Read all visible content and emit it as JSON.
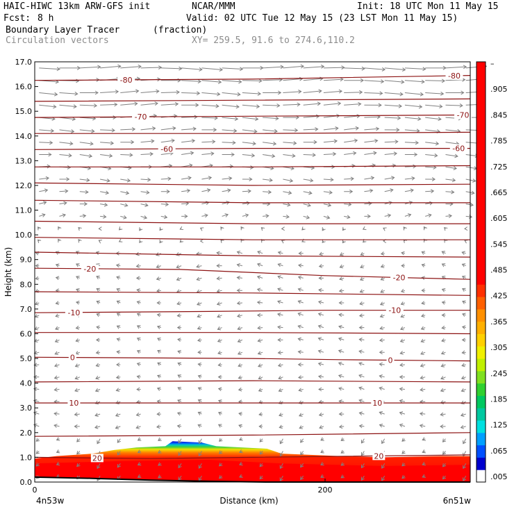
{
  "header": {
    "model_title": "HAIC-HIWC 13km ARW-GFS init",
    "organization": "NCAR/MMM",
    "init_time": "Init: 18 UTC Mon 11 May 15",
    "forecast_label": "Fcst:",
    "forecast_value": "8 h",
    "valid_time": "Valid: 02 UTC Tue 12 May 15 (23 LST Mon 11 May 15)",
    "field_name": "Boundary Layer Tracer",
    "field_units": "(fraction)",
    "vector_label": "Circulation vectors",
    "cross_section": "XY= 259.5, 91.6 to 274.6,110.2"
  },
  "axes": {
    "ylabel": "Height (km)",
    "xlabel": "Distance (km)",
    "left_endpoint": "4n53w",
    "right_endpoint": "6n51w"
  },
  "colors": {
    "contour": "#8b1010",
    "vector": "#808080",
    "terrain": "#000000",
    "frame": "#000000"
  },
  "chart_data": {
    "type": "heatmap",
    "description_of_layers": "filled tracer fraction, temperature contours, circulation vectors",
    "ylim": [
      0,
      17
    ],
    "xlim": [
      0,
      300
    ],
    "yticks": [
      "0.0",
      "1.0",
      "2.0",
      "3.0",
      "4.0",
      "5.0",
      "6.0",
      "7.0",
      "8.0",
      "9.0",
      "10.0",
      "11.0",
      "12.0",
      "13.0",
      "14.0",
      "15.0",
      "16.0",
      "17.0"
    ],
    "xticks": [
      {
        "value": 0,
        "label": "0"
      },
      {
        "value": 200,
        "label": "200"
      }
    ],
    "colorbar": {
      "labels": [
        ".005",
        ".065",
        ".125",
        ".185",
        ".245",
        ".305",
        ".365",
        ".425",
        ".485",
        ".545",
        ".605",
        ".665",
        ".725",
        ".785",
        ".845",
        ".905",
        "–"
      ],
      "colors": [
        "#ffffff",
        "#0000cd",
        "#0050ff",
        "#00a0ff",
        "#00e0e0",
        "#00c8a0",
        "#00c860",
        "#30d030",
        "#80e020",
        "#c0f000",
        "#f0f000",
        "#ffd000",
        "#ffb000",
        "#ff9000",
        "#ff6000",
        "#ff3000",
        "#ff0000",
        "#ff0000",
        "#ff0000",
        "#ff0000",
        "#ff0000",
        "#ff0000",
        "#ff0000",
        "#ff0000",
        "#ff0000",
        "#ff0000",
        "#ff0000",
        "#ff0000",
        "#ff0000",
        "#ff0000",
        "#ff0000",
        "#ff0000",
        "#ff0000",
        "#ff0000"
      ]
    },
    "terrain_km": [
      [
        0,
        0.2
      ],
      [
        40,
        0.15
      ],
      [
        80,
        0.08
      ],
      [
        120,
        0.03
      ],
      [
        160,
        0.0
      ],
      [
        200,
        0.0
      ],
      [
        240,
        0.0
      ],
      [
        280,
        0.0
      ],
      [
        300,
        0.0
      ]
    ],
    "blue_top_km": [
      [
        0,
        0.95
      ],
      [
        15,
        1.05
      ],
      [
        40,
        1.15
      ],
      [
        55,
        1.3
      ],
      [
        70,
        1.4
      ],
      [
        90,
        1.45
      ],
      [
        95,
        1.65
      ],
      [
        115,
        1.6
      ],
      [
        125,
        1.45
      ],
      [
        160,
        1.35
      ],
      [
        170,
        1.15
      ],
      [
        210,
        1.05
      ],
      [
        240,
        1.0
      ],
      [
        280,
        1.05
      ],
      [
        300,
        1.05
      ]
    ],
    "red_top_km": [
      [
        0,
        0.75
      ],
      [
        60,
        0.85
      ],
      [
        120,
        0.9
      ],
      [
        170,
        0.75
      ],
      [
        240,
        0.65
      ],
      [
        300,
        0.7
      ]
    ],
    "contours": [
      {
        "value": -80,
        "label": "-80",
        "pts": [
          [
            0,
            16.25
          ],
          [
            150,
            16.3
          ],
          [
            300,
            16.45
          ]
        ],
        "label_x": [
          63,
          289
        ]
      },
      {
        "value": -75,
        "label": "",
        "pts": [
          [
            0,
            15.4
          ],
          [
            150,
            15.45
          ],
          [
            300,
            15.5
          ]
        ]
      },
      {
        "value": -70,
        "label": "-70",
        "pts": [
          [
            0,
            14.75
          ],
          [
            150,
            14.8
          ],
          [
            300,
            14.85
          ]
        ],
        "label_x": [
          73,
          295
        ]
      },
      {
        "value": -65,
        "label": "",
        "pts": [
          [
            0,
            14.1
          ],
          [
            150,
            14.1
          ],
          [
            300,
            14.15
          ]
        ]
      },
      {
        "value": -60,
        "label": "-60",
        "pts": [
          [
            0,
            13.45
          ],
          [
            150,
            13.5
          ],
          [
            300,
            13.5
          ]
        ],
        "label_x": [
          91,
          292
        ]
      },
      {
        "value": -55,
        "label": "",
        "pts": [
          [
            0,
            12.75
          ],
          [
            150,
            12.75
          ],
          [
            300,
            12.8
          ]
        ]
      },
      {
        "value": -50,
        "label": "",
        "pts": [
          [
            0,
            12.1
          ],
          [
            150,
            12.0
          ],
          [
            300,
            12.05
          ]
        ]
      },
      {
        "value": -45,
        "label": "",
        "pts": [
          [
            0,
            11.4
          ],
          [
            150,
            11.3
          ],
          [
            300,
            11.3
          ]
        ]
      },
      {
        "value": -40,
        "label": "",
        "pts": [
          [
            0,
            10.55
          ],
          [
            150,
            10.45
          ],
          [
            300,
            10.45
          ]
        ]
      },
      {
        "value": -35,
        "label": "",
        "pts": [
          [
            0,
            9.9
          ],
          [
            150,
            9.8
          ],
          [
            300,
            9.8
          ]
        ]
      },
      {
        "value": -30,
        "label": "",
        "pts": [
          [
            0,
            9.3
          ],
          [
            150,
            9.15
          ],
          [
            300,
            9.1
          ]
        ]
      },
      {
        "value": -20,
        "label": "-20",
        "pts": [
          [
            0,
            8.65
          ],
          [
            100,
            8.6
          ],
          [
            200,
            8.35
          ],
          [
            300,
            8.2
          ]
        ],
        "label_x": [
          38,
          251
        ]
      },
      {
        "value": -15,
        "label": "",
        "pts": [
          [
            0,
            7.7
          ],
          [
            150,
            7.65
          ],
          [
            300,
            7.55
          ]
        ]
      },
      {
        "value": -10,
        "label": "-10",
        "pts": [
          [
            0,
            6.85
          ],
          [
            120,
            6.9
          ],
          [
            200,
            6.95
          ],
          [
            300,
            6.95
          ]
        ],
        "label_x": [
          27,
          248
        ]
      },
      {
        "value": -5,
        "label": "",
        "pts": [
          [
            0,
            6.05
          ],
          [
            150,
            6.05
          ],
          [
            300,
            6.0
          ]
        ]
      },
      {
        "value": 0,
        "label": "0",
        "pts": [
          [
            0,
            5.05
          ],
          [
            150,
            5.0
          ],
          [
            210,
            4.95
          ],
          [
            300,
            4.9
          ]
        ],
        "label_x": [
          26,
          245
        ]
      },
      {
        "value": 5,
        "label": "",
        "pts": [
          [
            0,
            4.05
          ],
          [
            150,
            4.1
          ],
          [
            300,
            4.05
          ]
        ]
      },
      {
        "value": 10,
        "label": "10",
        "pts": [
          [
            0,
            3.2
          ],
          [
            150,
            3.2
          ],
          [
            300,
            3.2
          ]
        ],
        "label_x": [
          27,
          236
        ]
      },
      {
        "value": 15,
        "label": "",
        "pts": [
          [
            0,
            1.85
          ],
          [
            150,
            1.9
          ],
          [
            300,
            2.0
          ]
        ]
      },
      {
        "value": 20,
        "label": "20",
        "pts": [
          [
            0,
            1.0
          ],
          [
            80,
            0.95
          ],
          [
            150,
            1.0
          ],
          [
            300,
            1.1
          ]
        ],
        "label_x": [
          43,
          237
        ]
      }
    ],
    "vectors_note": "upper levels westerly (rightward, stronger aloft), mid and lower levels weak easterly (leftward), small vertical motion"
  }
}
